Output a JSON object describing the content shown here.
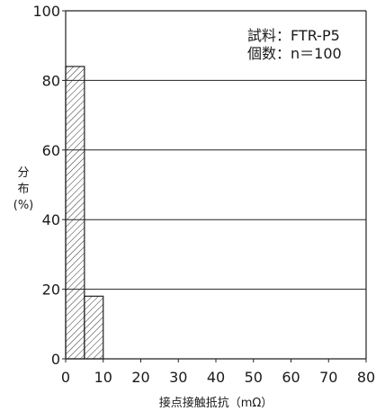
{
  "chart_data": {
    "type": "bar",
    "bins": [
      {
        "x_start": 0,
        "x_end": 5,
        "value": 84
      },
      {
        "x_start": 5,
        "x_end": 10,
        "value": 18
      },
      {
        "x_start": 10,
        "x_end": 80,
        "value": 0
      }
    ],
    "xlabel": "接点接触抵抗（mΩ）",
    "ylabel": [
      "分",
      "布",
      "(%)"
    ],
    "xlim": [
      0,
      80
    ],
    "ylim": [
      0,
      100
    ],
    "xticks": [
      "0",
      "10",
      "20",
      "30",
      "40",
      "50",
      "60",
      "70",
      "80"
    ],
    "yticks": [
      "0",
      "20",
      "40",
      "60",
      "80",
      "100"
    ],
    "grid": "horizontal",
    "bar_pattern": "diagonal-hatch",
    "annotations": {
      "sample": "試料：FTR-P5",
      "count": "個数：n＝100"
    }
  }
}
